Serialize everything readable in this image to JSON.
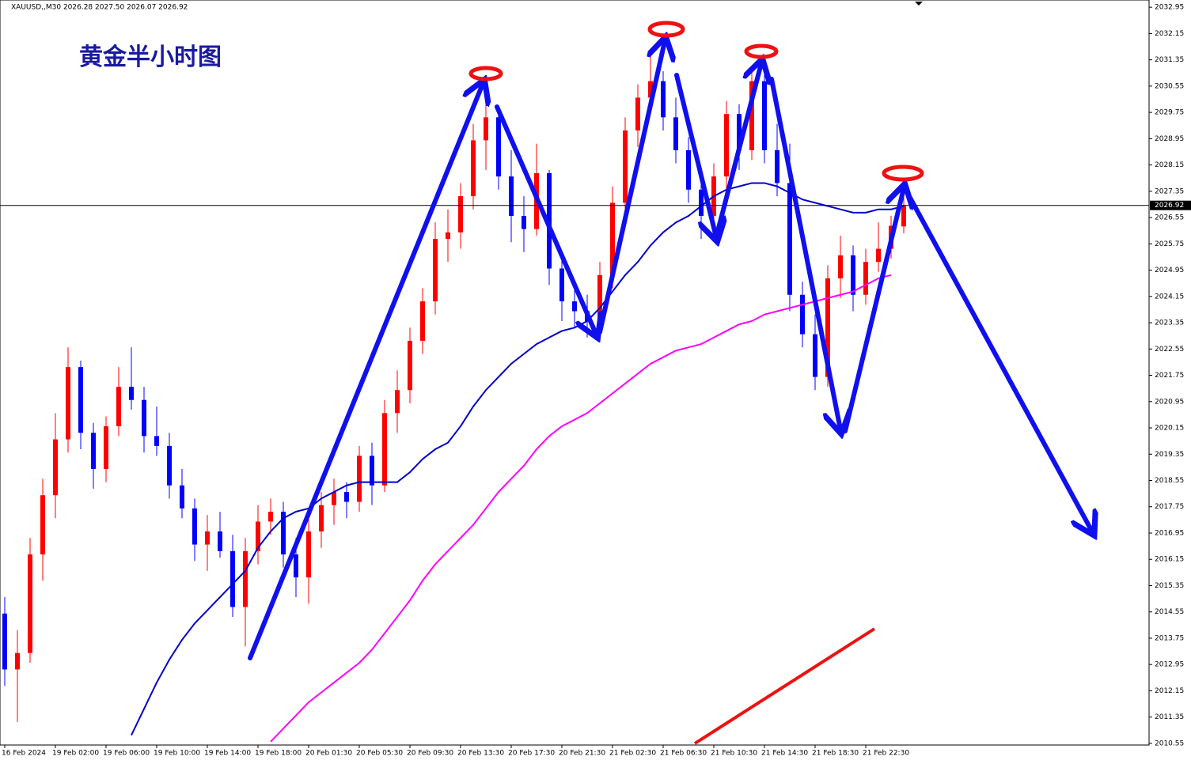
{
  "chart_data": {
    "type": "candlestick",
    "header": "XAUUSD,,M30  2026.28 2027.50 2026.07 2026.92",
    "title": "黄金半小时图",
    "categories": [
      "16 Feb 2024",
      null,
      null,
      null,
      "19 Feb 02:00",
      null,
      null,
      null,
      "19 Feb 06:00",
      null,
      null,
      null,
      "19 Feb 10:00",
      null,
      null,
      null,
      "19 Feb 14:00",
      null,
      null,
      null,
      "19 Feb 18:00",
      null,
      null,
      null,
      "20 Feb 01:30",
      null,
      null,
      null,
      "20 Feb 05:30",
      null,
      null,
      null,
      "20 Feb 09:30",
      null,
      null,
      null,
      "20 Feb 13:30",
      null,
      null,
      null,
      "20 Feb 17:30",
      null,
      null,
      null,
      "20 Feb 21:30",
      null,
      null,
      null,
      "21 Feb 02:30",
      null,
      null,
      null,
      "21 Feb 06:30",
      null,
      null,
      null,
      "21 Feb 10:30",
      null,
      null,
      null,
      "21 Feb 14:30",
      null,
      null,
      null,
      "21 Feb 18:30",
      null,
      null,
      null,
      "21 Feb 22:30",
      null,
      null,
      null
    ],
    "open": [
      2014.5,
      2012.8,
      2013.3,
      2016.3,
      2018.1,
      2019.8,
      2022.0,
      2020.0,
      2018.9,
      2020.2,
      2021.4,
      2021.0,
      2019.9,
      2019.6,
      2018.4,
      2017.7,
      2016.6,
      2017.0,
      2016.4,
      2014.7,
      2016.4,
      2017.3,
      2017.6,
      2016.3,
      2015.6,
      2017.0,
      2017.8,
      2018.2,
      2017.9,
      2019.3,
      2018.4,
      2020.6,
      2021.3,
      2022.8,
      2024.0,
      2025.9,
      2026.1,
      2027.2,
      2028.9,
      2029.6,
      2027.8,
      2026.6,
      2026.2,
      2027.9,
      2025.0,
      2024.0,
      2023.7,
      2023.4,
      2024.8,
      2027.0,
      2029.2,
      2030.2,
      2030.7,
      2029.6,
      2028.6,
      2027.4,
      2026.6,
      2027.8,
      2029.7,
      2028.6,
      2030.7,
      2028.6,
      2027.6,
      2024.2,
      2023.0,
      2021.7,
      2024.7,
      2025.4,
      2024.2,
      2025.2,
      2025.6,
      2026.28
    ],
    "high": [
      2015.0,
      2014.0,
      2016.8,
      2018.6,
      2020.6,
      2022.6,
      2022.2,
      2020.3,
      2020.5,
      2022.0,
      2022.6,
      2021.4,
      2020.8,
      2020.0,
      2018.9,
      2018.0,
      2017.5,
      2017.6,
      2016.9,
      2016.8,
      2017.8,
      2018.0,
      2017.9,
      2016.8,
      2017.4,
      2018.2,
      2018.6,
      2018.5,
      2019.6,
      2019.7,
      2021.0,
      2021.9,
      2023.2,
      2024.4,
      2026.4,
      2026.8,
      2027.6,
      2029.4,
      2030.8,
      2029.9,
      2028.6,
      2027.2,
      2028.8,
      2028.0,
      2025.4,
      2024.6,
      2024.2,
      2025.2,
      2027.5,
      2029.6,
      2030.6,
      2031.6,
      2031.0,
      2030.2,
      2029.0,
      2027.8,
      2028.2,
      2030.1,
      2030.0,
      2031.1,
      2030.9,
      2029.4,
      2028.8,
      2024.6,
      2023.6,
      2025.1,
      2026.0,
      2025.7,
      2025.6,
      2026.4,
      2026.6,
      2027.5
    ],
    "low": [
      2012.3,
      2011.2,
      2013.0,
      2015.5,
      2017.4,
      2019.4,
      2019.5,
      2018.3,
      2018.5,
      2019.9,
      2020.7,
      2019.4,
      2019.3,
      2018.0,
      2017.4,
      2016.1,
      2015.8,
      2016.2,
      2014.4,
      2013.5,
      2016.0,
      2016.9,
      2015.9,
      2015.0,
      2014.8,
      2016.5,
      2017.2,
      2017.4,
      2017.6,
      2017.8,
      2018.2,
      2020.0,
      2020.9,
      2022.4,
      2023.6,
      2025.2,
      2025.6,
      2026.8,
      2028.0,
      2027.4,
      2025.8,
      2025.5,
      2026.0,
      2024.5,
      2023.4,
      2023.2,
      2022.9,
      2023.1,
      2024.4,
      2026.6,
      2028.7,
      2029.8,
      2029.2,
      2028.2,
      2027.0,
      2025.9,
      2026.1,
      2027.4,
      2028.0,
      2028.3,
      2028.2,
      2027.2,
      2023.7,
      2022.6,
      2021.3,
      2021.4,
      2024.1,
      2023.7,
      2023.9,
      2024.9,
      2025.3,
      2026.07
    ],
    "close": [
      2012.8,
      2013.3,
      2016.3,
      2018.1,
      2019.8,
      2022.0,
      2020.0,
      2018.9,
      2020.2,
      2021.4,
      2021.0,
      2019.9,
      2019.6,
      2018.4,
      2017.7,
      2016.6,
      2017.0,
      2016.4,
      2014.7,
      2016.4,
      2017.3,
      2017.6,
      2016.3,
      2015.6,
      2017.0,
      2017.8,
      2018.2,
      2017.9,
      2019.3,
      2018.4,
      2020.6,
      2021.3,
      2022.8,
      2024.0,
      2025.9,
      2026.1,
      2027.2,
      2028.9,
      2029.6,
      2027.8,
      2026.6,
      2026.2,
      2027.9,
      2025.0,
      2024.0,
      2023.7,
      2023.4,
      2024.8,
      2027.0,
      2029.2,
      2030.2,
      2030.7,
      2029.6,
      2028.6,
      2027.4,
      2026.6,
      2027.8,
      2029.7,
      2028.6,
      2030.7,
      2028.6,
      2027.6,
      2024.2,
      2023.0,
      2021.7,
      2024.7,
      2025.4,
      2024.2,
      2025.2,
      2025.6,
      2026.3,
      2026.92
    ],
    "up_color": "#ff0000",
    "down_color": "#0000ff",
    "moving_averages": [
      {
        "color": "#0000cc",
        "values": [
          null,
          null,
          null,
          null,
          null,
          null,
          null,
          null,
          null,
          null,
          2010.8,
          2011.6,
          2012.4,
          2013.1,
          2013.7,
          2014.2,
          2014.6,
          2015.0,
          2015.4,
          2015.8,
          2016.5,
          2017.0,
          2017.4,
          2017.6,
          2017.7,
          2018.0,
          2018.2,
          2018.4,
          2018.5,
          2018.5,
          2018.5,
          2018.5,
          2018.8,
          2019.2,
          2019.5,
          2019.7,
          2020.2,
          2020.8,
          2021.3,
          2021.7,
          2022.1,
          2022.4,
          2022.7,
          2022.9,
          2023.1,
          2023.2,
          2023.4,
          2023.8,
          2024.3,
          2024.8,
          2025.2,
          2025.7,
          2026.1,
          2026.4,
          2026.6,
          2026.9,
          2027.2,
          2027.4,
          2027.5,
          2027.6,
          2027.6,
          2027.5,
          2027.3,
          2027.1,
          2027.0,
          2026.9,
          2026.8,
          2026.7,
          2026.7,
          2026.8,
          2026.8,
          2026.9
        ]
      },
      {
        "color": "#ff00ff",
        "values": [
          null,
          null,
          null,
          null,
          null,
          null,
          null,
          null,
          null,
          null,
          null,
          null,
          null,
          null,
          null,
          null,
          null,
          null,
          null,
          null,
          null,
          2010.6,
          2011.0,
          2011.4,
          2011.8,
          2012.1,
          2012.4,
          2012.7,
          2013.0,
          2013.4,
          2013.9,
          2014.4,
          2014.9,
          2015.5,
          2016.0,
          2016.4,
          2016.8,
          2017.2,
          2017.7,
          2018.2,
          2018.6,
          2019.0,
          2019.5,
          2019.9,
          2020.2,
          2020.4,
          2020.6,
          2020.9,
          2021.2,
          2021.5,
          2021.8,
          2022.1,
          2022.3,
          2022.5,
          2022.6,
          2022.7,
          2022.9,
          2023.1,
          2023.3,
          2023.4,
          2023.6,
          2023.7,
          2023.8,
          2023.9,
          2024.0,
          2024.1,
          2024.2,
          2024.3,
          2024.5,
          2024.7,
          2024.8,
          null
        ]
      }
    ],
    "last_price": 2026.92,
    "ylim": [
      2010.5,
      2033.17
    ],
    "yticks": [
      2010.55,
      2011.35,
      2012.15,
      2012.95,
      2013.75,
      2014.55,
      2015.35,
      2016.15,
      2016.95,
      2017.75,
      2018.55,
      2019.35,
      2020.15,
      2020.95,
      2021.75,
      2022.55,
      2023.35,
      2024.15,
      2024.95,
      2025.75,
      2026.55,
      2027.35,
      2028.15,
      2028.95,
      2029.75,
      2030.55,
      2031.35,
      2032.15,
      2032.95
    ]
  }
}
